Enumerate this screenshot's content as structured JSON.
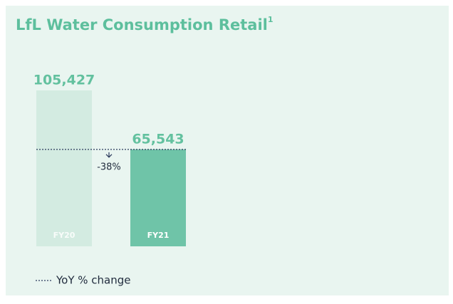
{
  "chart_data": {
    "type": "bar",
    "title": "LfL Water Consumption Retail",
    "title_note": "1",
    "categories": [
      "FY20",
      "FY21"
    ],
    "values": [
      105427,
      65543
    ],
    "value_labels": [
      "105,427",
      "65,543"
    ],
    "colors": [
      "#d3ebe1",
      "#6fc4a8"
    ],
    "label_color": "#63c19f",
    "annotation": "-38%",
    "legend": "YoY % change"
  }
}
